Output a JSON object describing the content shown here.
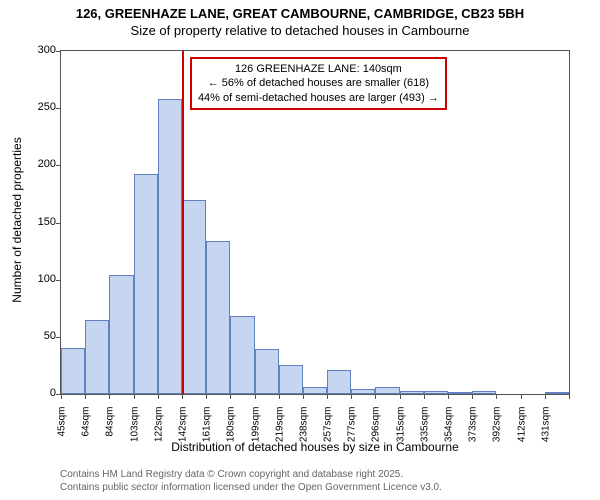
{
  "title_line1": "126, GREENHAZE LANE, GREAT CAMBOURNE, CAMBRIDGE, CB23 5BH",
  "title_line2": "Size of property relative to detached houses in Cambourne",
  "y_axis_label": "Number of detached properties",
  "x_axis_label": "Distribution of detached houses by size in Cambourne",
  "footer_line1": "Contains HM Land Registry data © Crown copyright and database right 2025.",
  "footer_line2": "Contains public sector information licensed under the Open Government Licence v3.0.",
  "chart": {
    "type": "histogram",
    "ylim": [
      0,
      300
    ],
    "ytick_step": 50,
    "y_ticks": [
      0,
      50,
      100,
      150,
      200,
      250,
      300
    ],
    "x_categories": [
      "45sqm",
      "64sqm",
      "84sqm",
      "103sqm",
      "122sqm",
      "142sqm",
      "161sqm",
      "180sqm",
      "199sqm",
      "219sqm",
      "238sqm",
      "257sqm",
      "277sqm",
      "296sqm",
      "315sqm",
      "335sqm",
      "354sqm",
      "373sqm",
      "392sqm",
      "412sqm",
      "431sqm"
    ],
    "values": [
      40,
      65,
      104,
      192,
      258,
      170,
      134,
      68,
      39,
      25,
      6,
      21,
      4,
      6,
      3,
      3,
      1,
      3,
      0,
      0,
      1
    ],
    "bar_fill": "#c7d6f0",
    "bar_stroke": "#6080c0",
    "background_color": "#ffffff",
    "axis_color": "#555555",
    "bar_width": 1.0,
    "marker": {
      "position_category_index": 5,
      "color": "#cc0000",
      "line_width": 2
    }
  },
  "annotation": {
    "line1": "126 GREENHAZE LANE: 140sqm",
    "line2": "← 56% of detached houses are smaller (618)",
    "line3": "44% of semi-detached houses are larger (493) →",
    "border_color": "#cc0000",
    "background_color": "#ffffff",
    "font_size": 11
  }
}
